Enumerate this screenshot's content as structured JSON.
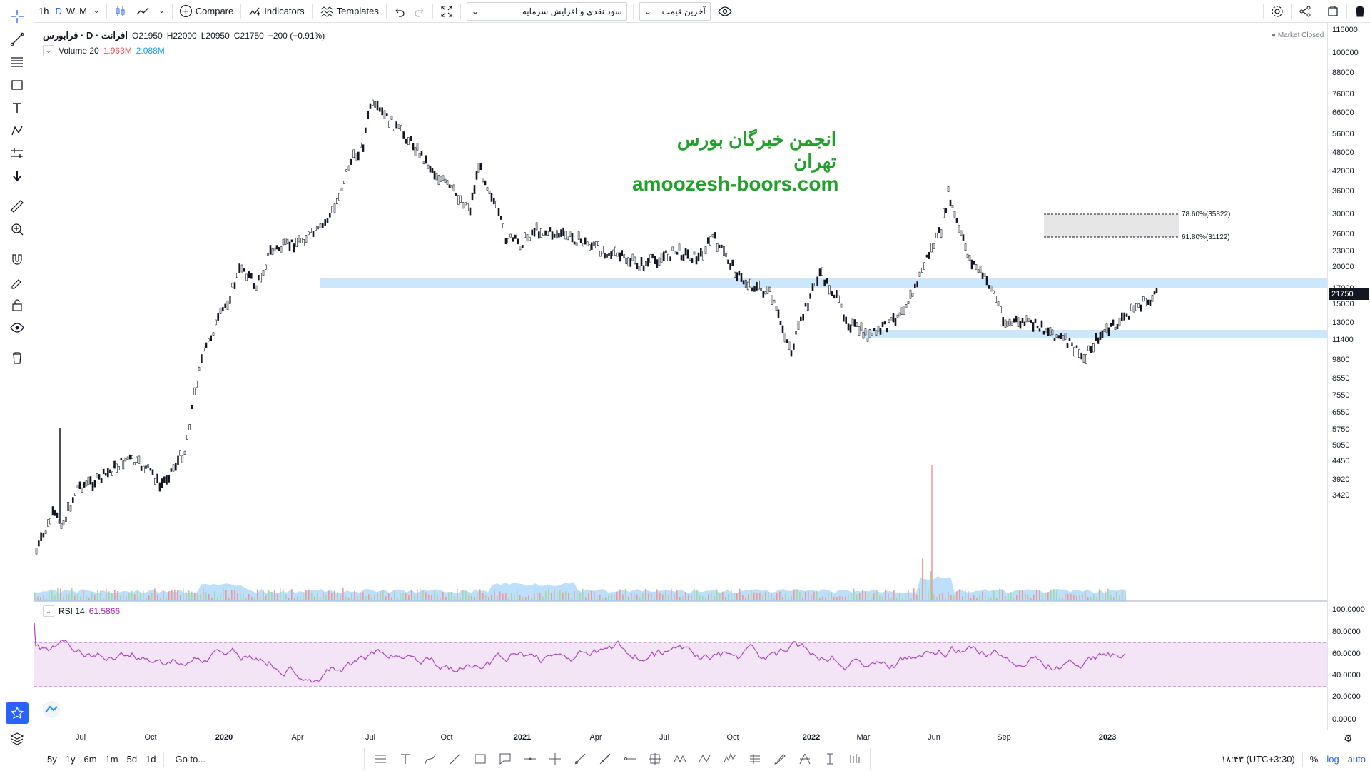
{
  "toolbar": {
    "intervals": [
      "1h",
      "D",
      "W",
      "M"
    ],
    "active_interval": "D",
    "compare_label": "Compare",
    "indicators_label": "Indicators",
    "templates_label": "Templates",
    "dropdown1_value": "سود نقدی و افزایش سرمایه",
    "dropdown2_value": "آخرین قیمت"
  },
  "legend": {
    "symbol": "افرانت · D · فرابورس",
    "open": "O21950",
    "high": "H22000",
    "low": "L20950",
    "close": "C21750",
    "change": "−200 (−0.91%)",
    "volume_label": "Volume 20",
    "volume_val1": "1.963M",
    "volume_val2": "2.088M",
    "rsi_label": "RSI 14",
    "rsi_value": "61.5866",
    "market_status": "Market Closed"
  },
  "watermark": {
    "line1": "انجمن خبرگان بورس تهران",
    "line2": "amoozesh-boors.com"
  },
  "fib": {
    "level1": "78.60%(35822)",
    "level2": "61.80%(31122)"
  },
  "price_axis": {
    "labels": [
      "116000",
      "100000",
      "88000",
      "76000",
      "66000",
      "56000",
      "48000",
      "42000",
      "36000",
      "30000",
      "26000",
      "23000",
      "20000",
      "17000",
      "15000",
      "13000",
      "11400",
      "9800",
      "8550",
      "7550",
      "6550",
      "5750",
      "5050",
      "4450",
      "3920",
      "3420"
    ],
    "current_price": "21750",
    "rsi_labels": [
      "100.0000",
      "80.0000",
      "60.0000",
      "40.0000",
      "20.0000",
      "0.0000"
    ]
  },
  "time_axis": {
    "labels": [
      "Jul",
      "Oct",
      "2020",
      "Apr",
      "Jul",
      "Oct",
      "2021",
      "Apr",
      "Jul",
      "Oct",
      "2022",
      "Mar",
      "Jun",
      "Sep",
      "2023"
    ]
  },
  "bottombar": {
    "ranges": [
      "5y",
      "1y",
      "6m",
      "1m",
      "5d",
      "1d"
    ],
    "goto_label": "Go to...",
    "clock": "۱۸:۴۳ (UTC+3:30)",
    "percent_label": "%",
    "log_label": "log",
    "auto_label": "auto"
  },
  "colors": {
    "accent": "#2962ff",
    "rsi_line": "#ab47bc",
    "rsi_band": "#f3e5f5",
    "zone": "#bbdefb",
    "watermark": "#22a02b"
  }
}
